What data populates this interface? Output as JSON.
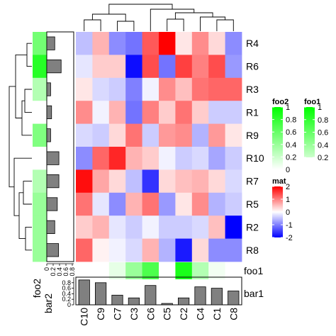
{
  "chart_data": {
    "type": "heatmap",
    "rows": [
      "R4",
      "R6",
      "R3",
      "R1",
      "R9",
      "R10",
      "R7",
      "R5",
      "R2",
      "R8"
    ],
    "columns": [
      "C10",
      "C9",
      "C7",
      "C3",
      "C6",
      "C5",
      "C2",
      "C4",
      "C1",
      "C8"
    ],
    "matrix": [
      [
        -0.5,
        0.6,
        -0.9,
        -1.1,
        1.3,
        2.0,
        0.2,
        0.9,
        0.3,
        -0.9
      ],
      [
        -0.2,
        0.4,
        0.4,
        -1.9,
        1.4,
        -1.1,
        1.5,
        1.0,
        1.4,
        -0.8
      ],
      [
        0.2,
        -0.3,
        -0.4,
        -1.0,
        -0.1,
        0.9,
        0.5,
        1.1,
        1.2,
        1.2
      ],
      [
        0.9,
        -0.1,
        0.6,
        -1.1,
        1.0,
        0.4,
        1.1,
        0.4,
        -0.4,
        -0.4
      ],
      [
        -0.3,
        -0.4,
        0.3,
        1.1,
        -0.4,
        0.8,
        0.9,
        -0.6,
        0.8,
        0.2
      ],
      [
        -0.9,
        1.2,
        1.7,
        0.6,
        0.4,
        -0.1,
        -0.4,
        -0.3,
        -0.7,
        -0.4
      ],
      [
        1.9,
        0.7,
        0.3,
        -0.5,
        -1.6,
        0.3,
        0.5,
        0.6,
        0.3,
        -0.3
      ],
      [
        1.1,
        -0.2,
        -0.9,
        0.6,
        1.1,
        -0.8,
        0.2,
        0.9,
        -0.6,
        -0.4
      ],
      [
        0.4,
        0.6,
        -0.2,
        -0.4,
        -0.1,
        -0.4,
        -0.4,
        -0.3,
        0.5,
        -2.0
      ],
      [
        1.2,
        0.1,
        -0.1,
        -0.3,
        0.6,
        -0.6,
        -1.8,
        0.3,
        -0.9,
        -0.9
      ]
    ],
    "foo1": [
      0.0,
      0.0,
      0.1,
      0.4,
      0.7,
      0.0,
      0.9,
      0.3,
      0.05,
      0.0
    ],
    "foo1_label": "foo1",
    "bar1": [
      0.9,
      0.8,
      0.35,
      0.25,
      0.7,
      0.05,
      0.25,
      0.65,
      0.6,
      0.5
    ],
    "bar1_label": "bar1",
    "bar1_ticks": [
      "0",
      "0.2",
      "0.4",
      "0.6",
      "0.8"
    ],
    "foo2": [
      0.55,
      0.85,
      0.3,
      0.0,
      0.5,
      0.0,
      0.3,
      0.4,
      0.4,
      0.4
    ],
    "foo2_label": "foo2",
    "bar2": [
      0.25,
      0.45,
      0.12,
      0.15,
      0.12,
      0.38,
      0.38,
      0.33,
      0.25,
      0.37
    ],
    "bar2_label": "bar2",
    "bar2_ticks": [
      "0",
      "0.2",
      "0.4",
      "0.6",
      "0.8"
    ],
    "colors": {
      "low": "#0000ff",
      "mid": "#ffffff",
      "high": "#ff0000",
      "foo_high": "#00ff00",
      "foo_low": "#ffffff",
      "bar_fill": "#808080"
    },
    "legends": [
      {
        "title": "foo2",
        "ticks": [
          "1",
          "0.8",
          "0.6",
          "0.4",
          "0.2",
          "0"
        ]
      },
      {
        "title": "foo1",
        "ticks": [
          "1",
          "0.8",
          "0.6",
          "0.4",
          "0.2"
        ]
      },
      {
        "title": "mat",
        "ticks": [
          "2",
          "1",
          "0",
          "-1",
          "-2"
        ]
      }
    ]
  }
}
